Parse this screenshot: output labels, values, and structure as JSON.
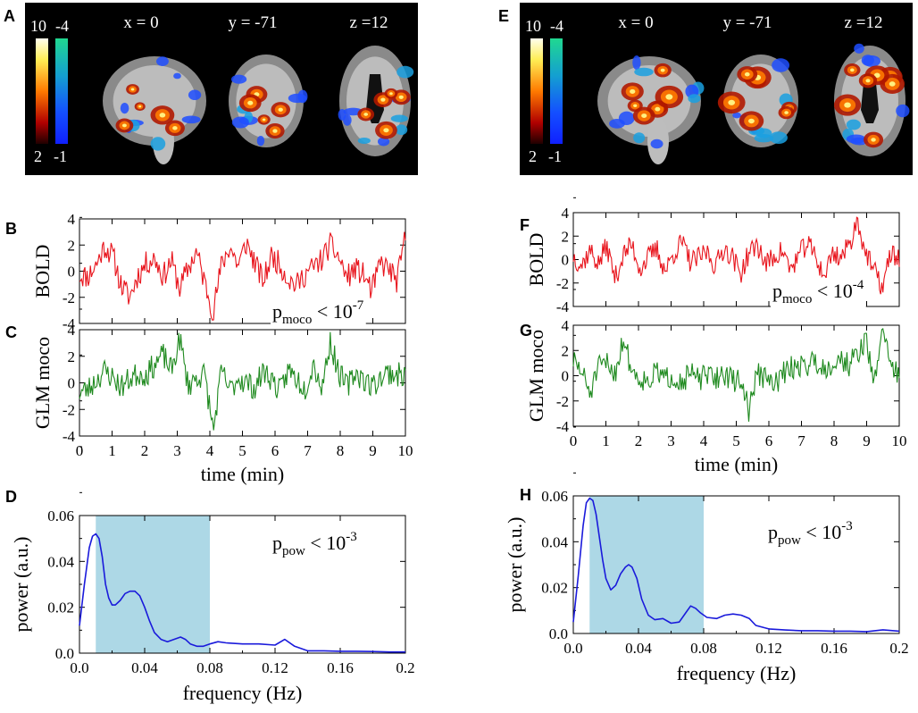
{
  "chart_data": [
    {
      "panel": "A",
      "type": "brain_map",
      "coordinates": [
        "x = 0",
        "y = -71",
        "z =12"
      ],
      "colorbar_positive": {
        "max": "10",
        "min": "2"
      },
      "colorbar_negative": {
        "max": "-4",
        "min": "-1"
      }
    },
    {
      "panel": "B",
      "type": "line",
      "ylabel": "BOLD",
      "ylim": [
        -4,
        4
      ],
      "yticks": [
        -4,
        -2,
        0,
        2,
        4
      ],
      "xlim": [
        0,
        10
      ],
      "color": "#e8141c",
      "annotation": {
        "base": "p",
        "sub": "moco",
        "rel": " < 10",
        "exp": "-7"
      },
      "series_seed": 11,
      "values_sampled": [
        -0.3,
        -0.4,
        0.5,
        1.9,
        1.2,
        -1.1,
        -2.0,
        -0.3,
        0.6,
        1.0,
        -0.4,
        0.8,
        -1.3,
        0.2,
        1.5,
        -0.9,
        -3.1,
        0.5,
        1.9,
        0.4,
        2.2,
        0.6,
        -0.8,
        1.2,
        0.5,
        -0.6,
        -1.1,
        -0.2,
        0.3,
        0.9,
        2.0,
        1.1,
        -0.5,
        0.2,
        -0.3,
        -1.5,
        0.6,
        0.2,
        -0.8,
        2.7
      ]
    },
    {
      "panel": "C",
      "type": "line",
      "ylabel": "GLM moco",
      "ylim": [
        -4,
        4
      ],
      "yticks": [
        -4,
        -2,
        0,
        2,
        4
      ],
      "xlim": [
        0,
        10
      ],
      "xticks": [
        0,
        1,
        2,
        3,
        4,
        5,
        6,
        7,
        8,
        9,
        10
      ],
      "xlabel": "time (min)",
      "color": "#1f8a1f",
      "series_seed": 23,
      "values_sampled": [
        -0.7,
        -0.5,
        0.2,
        0.9,
        0.4,
        -0.3,
        0.3,
        0.7,
        0.6,
        1.4,
        2.1,
        0.9,
        3.3,
        -0.2,
        0.4,
        0.6,
        -3.6,
        0.9,
        -0.6,
        0.4,
        0.0,
        -0.4,
        0.9,
        0.3,
        -0.7,
        1.0,
        0.3,
        -0.4,
        1.5,
        -0.4,
        3.1,
        0.8,
        -0.3,
        0.8,
        0.3,
        -0.3,
        0.4,
        0.8,
        0.6,
        0.6
      ]
    },
    {
      "panel": "D",
      "type": "line",
      "xlabel": "frequency (Hz)",
      "ylabel": "power (a.u.)",
      "xlim": [
        0,
        0.2
      ],
      "ylim": [
        0,
        0.06
      ],
      "xticks": [
        "0.0",
        "0.04",
        "0.08",
        "0.12",
        "0.16",
        "0.2"
      ],
      "yticks": [
        "0.0",
        "0.02",
        "0.04",
        "0.06"
      ],
      "band": [
        0.01,
        0.08
      ],
      "band_color": "#add8e6",
      "color": "#1a1adb",
      "annotation": {
        "base": "p",
        "sub": "pow",
        "rel": " < 10",
        "exp": "-3"
      },
      "x": [
        0.0,
        0.003,
        0.006,
        0.008,
        0.01,
        0.012,
        0.014,
        0.016,
        0.018,
        0.02,
        0.022,
        0.025,
        0.028,
        0.031,
        0.034,
        0.037,
        0.04,
        0.043,
        0.046,
        0.05,
        0.054,
        0.058,
        0.062,
        0.065,
        0.068,
        0.072,
        0.076,
        0.08,
        0.085,
        0.09,
        0.1,
        0.11,
        0.12,
        0.126,
        0.132,
        0.14,
        0.15,
        0.16,
        0.17,
        0.18,
        0.19,
        0.2
      ],
      "y": [
        0.012,
        0.03,
        0.046,
        0.051,
        0.052,
        0.05,
        0.042,
        0.03,
        0.024,
        0.021,
        0.021,
        0.023,
        0.026,
        0.027,
        0.027,
        0.025,
        0.02,
        0.014,
        0.009,
        0.006,
        0.005,
        0.006,
        0.007,
        0.006,
        0.004,
        0.003,
        0.003,
        0.004,
        0.005,
        0.0045,
        0.004,
        0.004,
        0.0035,
        0.006,
        0.003,
        0.001,
        0.001,
        0.0008,
        0.0008,
        0.0007,
        0.0005,
        0.0005
      ]
    },
    {
      "panel": "E",
      "type": "brain_map",
      "coordinates": [
        "x = 0",
        "y = -71",
        "z =12"
      ],
      "colorbar_positive": {
        "max": "10",
        "min": "2"
      },
      "colorbar_negative": {
        "max": "-4",
        "min": "-1"
      }
    },
    {
      "panel": "F",
      "type": "line",
      "ylabel": "BOLD",
      "ylim": [
        -4,
        4
      ],
      "yticks": [
        -4,
        -2,
        0,
        2,
        4
      ],
      "xlim": [
        0,
        10
      ],
      "color": "#e8141c",
      "annotation": {
        "base": "p",
        "sub": "moco",
        "rel": " < 10",
        "exp": "-4"
      },
      "series_seed": 37,
      "values_sampled": [
        0.3,
        -0.5,
        0.8,
        -0.4,
        1.2,
        -1.6,
        0.4,
        1.3,
        -0.8,
        0.2,
        0.9,
        -1.0,
        0.5,
        1.5,
        -0.2,
        0.1,
        0.7,
        -0.6,
        1.0,
        0.3,
        -1.2,
        0.5,
        1.3,
        -0.4,
        0.2,
        0.8,
        -0.9,
        0.4,
        1.4,
        0.3,
        -1.5,
        0.6,
        0.2,
        1.2,
        3.4,
        0.5,
        -1.0,
        -2.4,
        0.6,
        0.1
      ]
    },
    {
      "panel": "G",
      "type": "line",
      "ylabel": "GLM moco",
      "ylim": [
        -4,
        4
      ],
      "yticks": [
        -4,
        -2,
        0,
        2,
        4
      ],
      "xlim": [
        0,
        10
      ],
      "xticks": [
        0,
        1,
        2,
        3,
        4,
        5,
        6,
        7,
        8,
        9,
        10
      ],
      "xlabel": "time (min)",
      "color": "#1f8a1f",
      "series_seed": 51,
      "values_sampled": [
        1.2,
        0.3,
        -1.4,
        0.6,
        1.0,
        0.2,
        3.0,
        0.4,
        -0.2,
        -0.4,
        0.3,
        -0.3,
        0.0,
        -0.5,
        0.2,
        -0.3,
        0.0,
        -0.2,
        0.2,
        -0.4,
        -0.3,
        -2.7,
        0.2,
        -0.2,
        -0.8,
        0.1,
        0.6,
        0.8,
        0.9,
        1.2,
        0.5,
        1.0,
        1.3,
        0.9,
        1.7,
        2.9,
        -0.8,
        4.0,
        1.0,
        -0.3
      ]
    },
    {
      "panel": "H",
      "type": "line",
      "xlabel": "frequency (Hz)",
      "ylabel": "power (a.u.)",
      "xlim": [
        0,
        0.2
      ],
      "ylim": [
        0,
        0.06
      ],
      "xticks": [
        "0.0",
        "0.04",
        "0.08",
        "0.12",
        "0.16",
        "0.2"
      ],
      "yticks": [
        "0.0",
        "0.02",
        "0.04",
        "0.06"
      ],
      "band": [
        0.01,
        0.08
      ],
      "band_color": "#add8e6",
      "color": "#1a1adb",
      "annotation": {
        "base": "p",
        "sub": "pow",
        "rel": " < 10",
        "exp": "-3"
      },
      "x": [
        0.0,
        0.003,
        0.006,
        0.008,
        0.01,
        0.012,
        0.014,
        0.016,
        0.018,
        0.02,
        0.023,
        0.026,
        0.029,
        0.032,
        0.034,
        0.036,
        0.039,
        0.042,
        0.046,
        0.05,
        0.055,
        0.06,
        0.065,
        0.069,
        0.072,
        0.075,
        0.078,
        0.082,
        0.088,
        0.093,
        0.098,
        0.103,
        0.108,
        0.112,
        0.12,
        0.13,
        0.14,
        0.15,
        0.16,
        0.17,
        0.18,
        0.19,
        0.2
      ],
      "y": [
        0.005,
        0.025,
        0.047,
        0.057,
        0.059,
        0.058,
        0.052,
        0.042,
        0.032,
        0.024,
        0.019,
        0.021,
        0.026,
        0.029,
        0.03,
        0.029,
        0.024,
        0.015,
        0.008,
        0.006,
        0.0065,
        0.0045,
        0.005,
        0.009,
        0.012,
        0.011,
        0.009,
        0.007,
        0.0065,
        0.008,
        0.0085,
        0.008,
        0.0065,
        0.0035,
        0.002,
        0.0015,
        0.0012,
        0.0012,
        0.001,
        0.001,
        0.0008,
        0.0016,
        0.001
      ]
    }
  ]
}
